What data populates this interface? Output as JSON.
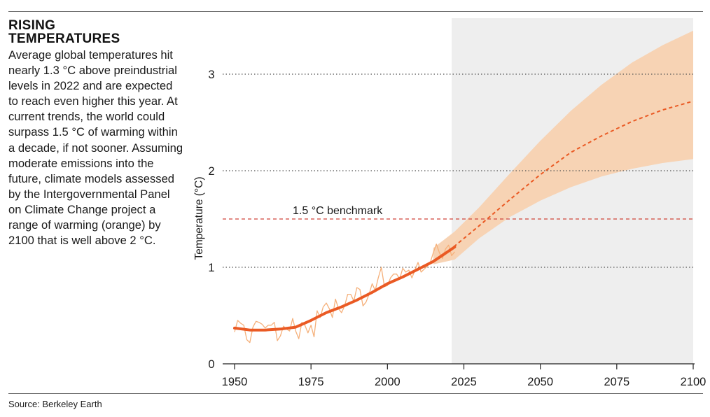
{
  "header": {
    "title": "RISING\nTEMPERATURES",
    "description": "Average global temperatures hit nearly 1.3 °C above preindustrial levels in 2022 and are expected to reach even higher this year. At current trends, the world could surpass 1.5 °C of warming within a decade, if not sooner. Assuming moderate emissions into the future, climate models assessed by the Intergovernmental Panel on Climate Change project a range of warming (orange) by 2100 that is well above 2 °C."
  },
  "footer": {
    "source": "Source: Berkeley Earth"
  },
  "colors": {
    "accent": "#ea5a24",
    "annual": "#f5b07a",
    "projection_band": "#f7d3b4",
    "projection_shade": "#eeeeee",
    "grid": "#555555"
  },
  "chart_data": {
    "type": "line",
    "title": "",
    "xlabel": "",
    "ylabel": "Temperature (°C)",
    "xlim": [
      1948,
      2100
    ],
    "ylim": [
      0,
      3.5
    ],
    "x_ticks": [
      "1950",
      "1975",
      "2000",
      "2025",
      "2050",
      "2075",
      "2100"
    ],
    "y_ticks": [
      "0",
      "1",
      "2",
      "3"
    ],
    "gridlines_y": [
      1,
      2,
      3
    ],
    "shaded_region": {
      "x_start": 2021,
      "x_end": 2100
    },
    "benchmark": {
      "value": 1.5,
      "label": "1.5 °C benchmark"
    },
    "series": [
      {
        "name": "annual",
        "style": "thin",
        "x": [
          1950,
          1951,
          1952,
          1953,
          1954,
          1955,
          1956,
          1957,
          1958,
          1959,
          1960,
          1961,
          1962,
          1963,
          1964,
          1965,
          1966,
          1967,
          1968,
          1969,
          1970,
          1971,
          1972,
          1973,
          1974,
          1975,
          1976,
          1977,
          1978,
          1979,
          1980,
          1981,
          1982,
          1983,
          1984,
          1985,
          1986,
          1987,
          1988,
          1989,
          1990,
          1991,
          1992,
          1993,
          1994,
          1995,
          1996,
          1997,
          1998,
          1999,
          2000,
          2001,
          2002,
          2003,
          2004,
          2005,
          2006,
          2007,
          2008,
          2009,
          2010,
          2011,
          2012,
          2013,
          2014,
          2015,
          2016,
          2017,
          2018,
          2019,
          2020,
          2021,
          2022
        ],
        "values": [
          0.33,
          0.45,
          0.42,
          0.4,
          0.25,
          0.22,
          0.38,
          0.44,
          0.43,
          0.41,
          0.37,
          0.4,
          0.4,
          0.43,
          0.24,
          0.29,
          0.39,
          0.36,
          0.34,
          0.47,
          0.34,
          0.26,
          0.43,
          0.4,
          0.32,
          0.4,
          0.28,
          0.55,
          0.48,
          0.59,
          0.63,
          0.57,
          0.48,
          0.67,
          0.57,
          0.53,
          0.6,
          0.72,
          0.72,
          0.65,
          0.79,
          0.77,
          0.6,
          0.64,
          0.72,
          0.83,
          0.76,
          0.89,
          1.0,
          0.8,
          0.81,
          0.89,
          0.93,
          0.93,
          0.88,
          0.99,
          0.95,
          0.97,
          0.89,
          0.97,
          1.05,
          0.95,
          0.98,
          1.01,
          1.05,
          1.15,
          1.24,
          1.15,
          1.09,
          1.19,
          1.23,
          1.12,
          1.16
        ]
      },
      {
        "name": "smoothed",
        "style": "thick",
        "x": [
          1950,
          1955,
          1960,
          1965,
          1970,
          1975,
          1980,
          1985,
          1990,
          1995,
          2000,
          2005,
          2010,
          2015,
          2022
        ],
        "values": [
          0.37,
          0.35,
          0.35,
          0.36,
          0.38,
          0.45,
          0.53,
          0.59,
          0.66,
          0.74,
          0.83,
          0.9,
          0.98,
          1.06,
          1.21
        ]
      },
      {
        "name": "projection",
        "style": "dashed",
        "x": [
          2015,
          2022,
          2030,
          2040,
          2050,
          2060,
          2070,
          2080,
          2090,
          2100
        ],
        "values": [
          1.06,
          1.22,
          1.43,
          1.7,
          1.96,
          2.19,
          2.36,
          2.51,
          2.63,
          2.72
        ]
      },
      {
        "name": "projection-upper",
        "style": "band-top",
        "x": [
          2015,
          2022,
          2030,
          2040,
          2050,
          2060,
          2070,
          2080,
          2090,
          2100
        ],
        "values": [
          1.2,
          1.37,
          1.62,
          1.97,
          2.31,
          2.62,
          2.89,
          3.12,
          3.3,
          3.45
        ]
      },
      {
        "name": "projection-lower",
        "style": "band-bottom",
        "x": [
          2015,
          2022,
          2030,
          2040,
          2050,
          2060,
          2070,
          2080,
          2090,
          2100
        ],
        "values": [
          1.03,
          1.08,
          1.3,
          1.52,
          1.69,
          1.83,
          1.94,
          2.02,
          2.08,
          2.12
        ]
      }
    ]
  }
}
